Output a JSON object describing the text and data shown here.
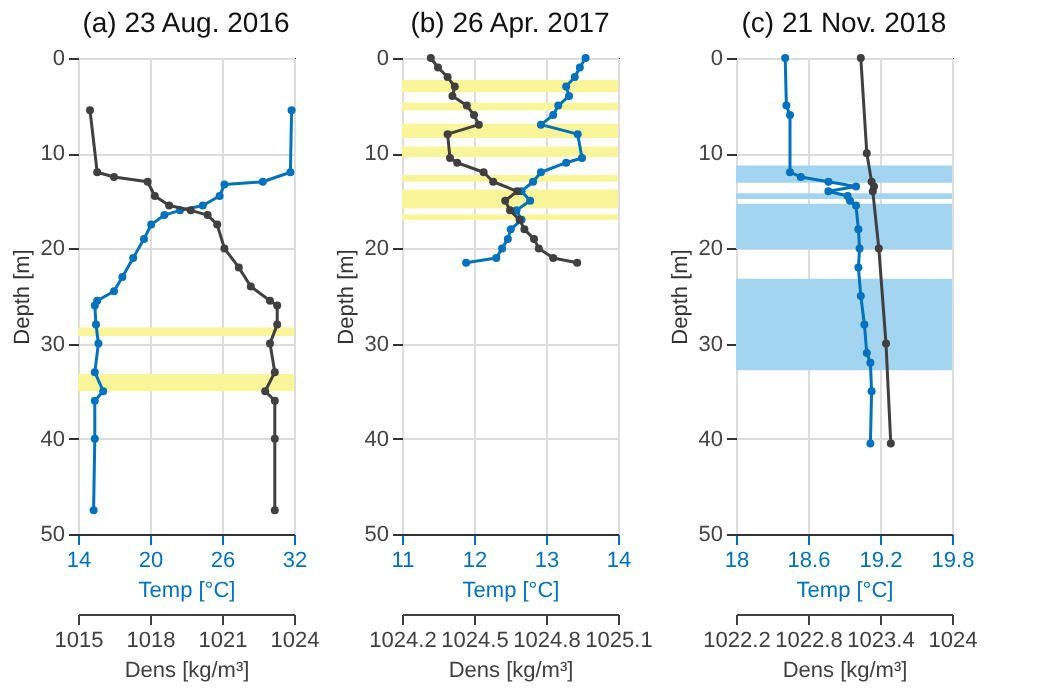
{
  "chart_data": [
    {
      "type": "line",
      "title": "(a) 23 Aug. 2016",
      "xlabel": "Temp [°C]",
      "x2label": "Dens [kg/m³]",
      "ylabel": "Depth [m]",
      "xlim": [
        14,
        32
      ],
      "xticks": [
        14,
        20,
        26,
        32
      ],
      "x2lim": [
        1015,
        1024
      ],
      "x2ticks": [
        1015,
        1018,
        1021,
        1024
      ],
      "ylim": [
        50,
        0
      ],
      "yticks": [
        0,
        10,
        20,
        30,
        40,
        50
      ],
      "grid": true,
      "marker": "circle",
      "bands": [
        {
          "axis": "y",
          "from": 28.3,
          "to": 29.2,
          "color": "#fbf59a"
        },
        {
          "axis": "y",
          "from": 33.2,
          "to": 35,
          "color": "#fbf59a"
        }
      ],
      "series": [
        {
          "color": "#0072bd",
          "x": [
            31.8,
            31.7,
            29.4,
            26.2,
            25.8,
            24.4,
            22.5,
            21.2,
            20.1,
            19.5,
            18.6,
            17.7,
            17,
            15.6,
            15.4,
            15.5,
            15.7,
            15.4,
            16.1,
            15.4,
            15.4,
            15.3
          ],
          "values": [
            5.5,
            12,
            13,
            13.3,
            14.5,
            15.5,
            16,
            16.5,
            17.5,
            19,
            21,
            23,
            24.5,
            25.5,
            26,
            28,
            30,
            33,
            35,
            36,
            40,
            47.5
          ]
        },
        {
          "color": "#404040",
          "axis": "x2",
          "x": [
            1015.5,
            1015.8,
            1016.5,
            1017.9,
            1018.2,
            1018.8,
            1019.7,
            1020.4,
            1020.8,
            1021.1,
            1021.7,
            1022.2,
            1023,
            1023.3,
            1023.3,
            1023,
            1023.2,
            1022.8,
            1023.2,
            1023.2,
            1023.2
          ],
          "values": [
            5.5,
            12,
            12.5,
            13,
            14.5,
            15.5,
            16,
            16.5,
            17.5,
            20,
            22,
            24,
            25.5,
            26,
            28,
            30,
            33,
            35,
            36,
            40,
            47.5
          ]
        }
      ]
    },
    {
      "type": "line",
      "title": "(b) 26 Apr. 2017",
      "xlabel": "Temp [°C]",
      "x2label": "Dens [kg/m³]",
      "ylabel": "Depth [m]",
      "xlim": [
        11,
        14
      ],
      "xticks": [
        11,
        12,
        13,
        14
      ],
      "x2lim": [
        1024.2,
        1025.1
      ],
      "x2ticks": [
        1024.2,
        1024.5,
        1024.8,
        1025.1
      ],
      "ylim": [
        50,
        0
      ],
      "yticks": [
        0,
        10,
        20,
        30,
        40,
        50
      ],
      "grid": true,
      "marker": "circle",
      "bands": [
        {
          "axis": "y",
          "from": 2.3,
          "to": 3.6,
          "color": "#fbf59a"
        },
        {
          "axis": "y",
          "from": 4.7,
          "to": 5.5,
          "color": "#fbf59a"
        },
        {
          "axis": "y",
          "from": 6.9,
          "to": 8.4,
          "color": "#fbf59a"
        },
        {
          "axis": "y",
          "from": 9.3,
          "to": 10.4,
          "color": "#fbf59a"
        },
        {
          "axis": "y",
          "from": 12.3,
          "to": 13,
          "color": "#fbf59a"
        },
        {
          "axis": "y",
          "from": 13.8,
          "to": 15.8,
          "color": "#fbf59a"
        },
        {
          "axis": "y",
          "from": 16.4,
          "to": 17,
          "color": "#fbf59a"
        }
      ],
      "series": [
        {
          "color": "#0072bd",
          "x": [
            13.55,
            13.47,
            13.4,
            13.28,
            13.32,
            13.17,
            13.1,
            12.93,
            13.44,
            13.5,
            13.28,
            12.93,
            12.82,
            12.66,
            12.78,
            12.59,
            12.66,
            12.51,
            12.47,
            12.39,
            12.31,
            11.89
          ],
          "values": [
            0,
            1,
            2,
            3,
            4,
            5,
            6,
            7,
            8,
            10.5,
            11,
            12,
            13,
            14,
            15,
            16,
            17,
            18,
            19,
            20,
            21,
            21.5
          ]
        },
        {
          "color": "#404040",
          "axis": "x2",
          "x": [
            1024.32,
            1024.35,
            1024.39,
            1024.42,
            1024.41,
            1024.47,
            1024.5,
            1024.52,
            1024.39,
            1024.4,
            1024.43,
            1024.54,
            1024.58,
            1024.68,
            1024.63,
            1024.65,
            1024.69,
            1024.71,
            1024.75,
            1024.77,
            1024.83,
            1024.93
          ],
          "values": [
            0,
            1,
            2,
            3,
            4,
            5,
            6,
            7,
            8,
            10.5,
            11,
            12,
            13,
            14,
            15,
            16,
            17,
            18,
            19,
            20,
            21,
            21.5
          ]
        }
      ]
    },
    {
      "type": "line",
      "title": "(c) 21 Nov. 2018",
      "xlabel": "Temp [°C]",
      "x2label": "Dens [kg/m³]",
      "ylabel": "Depth [m]",
      "xlim": [
        18,
        19.8
      ],
      "xticks": [
        18,
        18.6,
        19.2,
        19.8
      ],
      "x2lim": [
        1022.2,
        1024
      ],
      "x2ticks": [
        1022.2,
        1022.8,
        1023.4,
        1024
      ],
      "ylim": [
        50,
        0
      ],
      "yticks": [
        0,
        10,
        20,
        30,
        40,
        50
      ],
      "grid": true,
      "marker": "circle",
      "bands": [
        {
          "axis": "y",
          "from": 11.3,
          "to": 13.1,
          "color": "#a3d5f0"
        },
        {
          "axis": "y",
          "from": 14.2,
          "to": 14.8,
          "color": "#a3d5f0"
        },
        {
          "axis": "y",
          "from": 15.3,
          "to": 20.1,
          "color": "#a3d5f0"
        },
        {
          "axis": "y",
          "from": 23.2,
          "to": 32.8,
          "color": "#a3d5f0"
        }
      ],
      "series": [
        {
          "color": "#0072bd",
          "x": [
            18.41,
            18.42,
            18.45,
            18.45,
            18.54,
            18.77,
            19.0,
            18.77,
            18.93,
            18.95,
            19.0,
            19.02,
            19.03,
            19.02,
            19.04,
            19.07,
            19.09,
            19.12,
            19.13,
            19.12
          ],
          "values": [
            0,
            5,
            6,
            12,
            12.5,
            13,
            13.5,
            14,
            14.5,
            15,
            15.5,
            18,
            20,
            22,
            25,
            28,
            31,
            32,
            35,
            40.5
          ]
        },
        {
          "color": "#404040",
          "axis": "x2",
          "x": [
            1023.24,
            1023.29,
            1023.33,
            1023.35,
            1023.34,
            1023.39,
            1023.45,
            1023.49
          ],
          "values": [
            0,
            10,
            13,
            13.5,
            14,
            20,
            30,
            40.5
          ]
        }
      ]
    }
  ]
}
